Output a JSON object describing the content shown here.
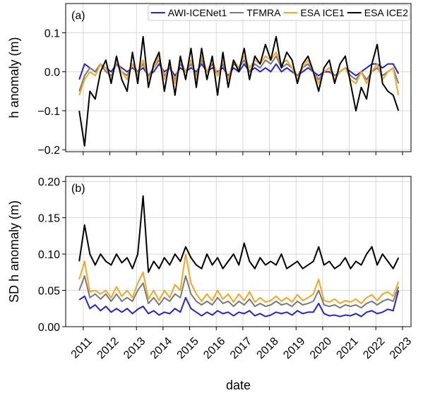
{
  "chart_data": [
    {
      "type": "line",
      "annotation": "(a)",
      "y_label": "h anomaly (m)",
      "legend": "upper right",
      "grid": true,
      "xlim": [
        2010.34,
        2023.32
      ],
      "xticks": [
        2011,
        2012,
        2013,
        2014,
        2015,
        2016,
        2017,
        2018,
        2019,
        2020,
        2021,
        2022,
        2023
      ],
      "ylim": [
        -0.205,
        0.175
      ],
      "yticks": [
        {
          "value": -0.2,
          "label": "−0.2"
        },
        {
          "value": -0.1,
          "label": "−0.1"
        },
        {
          "value": 0,
          "label": "0.0"
        },
        0.1
      ],
      "x": [
        2010.85,
        2011.05,
        2011.25,
        2011.45,
        2011.65,
        2011.85,
        2012.05,
        2012.25,
        2012.45,
        2012.65,
        2012.85,
        2013.05,
        2013.25,
        2013.45,
        2013.65,
        2013.85,
        2014.05,
        2014.25,
        2014.45,
        2014.65,
        2014.85,
        2015.05,
        2015.25,
        2015.45,
        2015.65,
        2015.85,
        2016.05,
        2016.25,
        2016.45,
        2016.65,
        2016.85,
        2017.05,
        2017.25,
        2017.45,
        2017.65,
        2017.85,
        2018.05,
        2018.25,
        2018.45,
        2018.65,
        2018.85,
        2019.05,
        2019.25,
        2019.45,
        2019.65,
        2019.85,
        2020.05,
        2020.25,
        2020.45,
        2020.65,
        2020.85,
        2021.05,
        2021.25,
        2021.45,
        2021.65,
        2021.85,
        2022.05,
        2022.25,
        2022.45,
        2022.65,
        2022.85
      ],
      "series": [
        {
          "name": "AWI-ICENet1",
          "color": "#2323d8",
          "values": [
            -0.02,
            0.02,
            0.01,
            0.0,
            0.02,
            0.01,
            0.0,
            0.02,
            0.01,
            0.0,
            0.01,
            0.0,
            0.01,
            -0.01,
            0.0,
            0.02,
            0.0,
            0.01,
            -0.01,
            0.01,
            0.0,
            0.01,
            0.0,
            0.02,
            0.0,
            0.01,
            0.0,
            0.01,
            -0.01,
            0.01,
            0.0,
            0.02,
            0.0,
            0.01,
            0.0,
            0.01,
            0.0,
            0.02,
            0.0,
            0.01,
            0.0,
            -0.01,
            0.0,
            0.01,
            0.0,
            -0.01,
            0.0,
            0.0,
            -0.01,
            0.0,
            0.01,
            0.0,
            -0.01,
            0.0,
            0.01,
            0.02,
            0.02,
            0.01,
            0.02,
            0.02,
            -0.005
          ]
        },
        {
          "name": "TFMRA",
          "color": "#7a7a7a",
          "values": [
            -0.05,
            -0.01,
            0.01,
            0.0,
            0.02,
            0.0,
            -0.01,
            0.02,
            0.0,
            -0.01,
            0.02,
            0.0,
            0.02,
            -0.01,
            0.01,
            0.03,
            -0.01,
            0.01,
            -0.02,
            0.02,
            0.0,
            0.02,
            -0.01,
            0.03,
            0.0,
            0.02,
            -0.01,
            0.02,
            -0.02,
            0.02,
            0.01,
            0.03,
            0.0,
            0.02,
            0.01,
            0.03,
            0.02,
            0.04,
            0.01,
            0.02,
            0.01,
            -0.01,
            0.01,
            0.02,
            0.0,
            -0.02,
            0.0,
            0.01,
            -0.01,
            0.0,
            0.01,
            -0.01,
            -0.02,
            0.0,
            -0.02,
            0.0,
            0.01,
            -0.01,
            0.0,
            0.01,
            -0.03
          ]
        },
        {
          "name": "ESA ICE1",
          "color": "#f5a623",
          "values": [
            -0.06,
            -0.02,
            0.0,
            -0.01,
            0.02,
            0.01,
            -0.02,
            0.03,
            0.0,
            -0.02,
            0.02,
            -0.01,
            0.03,
            -0.02,
            0.01,
            0.04,
            -0.02,
            0.02,
            -0.03,
            0.03,
            0.0,
            0.03,
            -0.02,
            0.04,
            0.0,
            0.03,
            -0.01,
            0.03,
            -0.02,
            0.03,
            0.01,
            0.04,
            0.01,
            0.03,
            0.02,
            0.04,
            0.03,
            0.05,
            0.02,
            0.03,
            0.01,
            -0.02,
            0.01,
            0.03,
            0.0,
            -0.03,
            0.0,
            0.01,
            -0.02,
            0.0,
            0.01,
            -0.02,
            -0.03,
            0.0,
            -0.03,
            0.0,
            0.02,
            -0.02,
            0.0,
            0.01,
            -0.06
          ]
        },
        {
          "name": "ESA ICE2",
          "color": "#000000",
          "values": [
            -0.1,
            -0.19,
            -0.05,
            -0.07,
            0.0,
            0.03,
            -0.03,
            0.04,
            -0.02,
            -0.05,
            0.05,
            -0.03,
            0.09,
            -0.04,
            0.02,
            0.05,
            -0.05,
            0.03,
            -0.06,
            0.04,
            -0.02,
            0.06,
            -0.04,
            0.06,
            -0.02,
            0.04,
            -0.06,
            0.05,
            -0.04,
            0.03,
            0.0,
            0.06,
            -0.02,
            0.04,
            0.02,
            0.07,
            0.03,
            0.09,
            0.01,
            0.05,
            0.03,
            -0.03,
            0.02,
            0.04,
            0.0,
            -0.05,
            0.01,
            0.03,
            -0.03,
            0.02,
            0.04,
            -0.03,
            -0.1,
            -0.04,
            -0.07,
            0.02,
            0.07,
            -0.03,
            -0.05,
            -0.06,
            -0.1
          ]
        }
      ]
    },
    {
      "type": "line",
      "annotation": "(b)",
      "y_label": "SD h anomaly (m)",
      "x_label": "date",
      "grid": true,
      "xlim": [
        2010.34,
        2023.32
      ],
      "xticks": [
        2011,
        2012,
        2013,
        2014,
        2015,
        2016,
        2017,
        2018,
        2019,
        2020,
        2021,
        2022,
        2023
      ],
      "ylim": [
        0,
        0.207
      ],
      "yticks": [
        {
          "value": 0,
          "label": "0.00"
        },
        0.05,
        {
          "value": 0.1,
          "label": "0.10"
        },
        0.15,
        {
          "value": 0.2,
          "label": "0.20"
        }
      ],
      "x": [
        2010.85,
        2011.05,
        2011.25,
        2011.45,
        2011.65,
        2011.85,
        2012.05,
        2012.25,
        2012.45,
        2012.65,
        2012.85,
        2013.05,
        2013.25,
        2013.45,
        2013.65,
        2013.85,
        2014.05,
        2014.25,
        2014.45,
        2014.65,
        2014.85,
        2015.05,
        2015.25,
        2015.45,
        2015.65,
        2015.85,
        2016.05,
        2016.25,
        2016.45,
        2016.65,
        2016.85,
        2017.05,
        2017.25,
        2017.45,
        2017.65,
        2017.85,
        2018.05,
        2018.25,
        2018.45,
        2018.65,
        2018.85,
        2019.05,
        2019.25,
        2019.45,
        2019.65,
        2019.85,
        2020.05,
        2020.25,
        2020.45,
        2020.65,
        2020.85,
        2021.05,
        2021.25,
        2021.45,
        2021.65,
        2021.85,
        2022.05,
        2022.25,
        2022.45,
        2022.65,
        2022.85
      ],
      "series": [
        {
          "color": "#2323d8",
          "values": [
            0.037,
            0.042,
            0.025,
            0.03,
            0.022,
            0.028,
            0.02,
            0.025,
            0.02,
            0.025,
            0.018,
            0.024,
            0.028,
            0.018,
            0.022,
            0.016,
            0.02,
            0.018,
            0.025,
            0.02,
            0.04,
            0.025,
            0.02,
            0.015,
            0.02,
            0.016,
            0.022,
            0.018,
            0.02,
            0.015,
            0.02,
            0.018,
            0.022,
            0.015,
            0.018,
            0.014,
            0.016,
            0.02,
            0.018,
            0.02,
            0.016,
            0.022,
            0.018,
            0.02,
            0.02,
            0.032,
            0.018,
            0.015,
            0.016,
            0.014,
            0.016,
            0.015,
            0.018,
            0.014,
            0.02,
            0.022,
            0.018,
            0.02,
            0.024,
            0.022,
            0.05
          ]
        },
        {
          "color": "#7a7a7a",
          "values": [
            0.05,
            0.07,
            0.04,
            0.045,
            0.038,
            0.045,
            0.035,
            0.045,
            0.035,
            0.04,
            0.035,
            0.05,
            0.06,
            0.032,
            0.04,
            0.03,
            0.04,
            0.035,
            0.045,
            0.04,
            0.07,
            0.045,
            0.035,
            0.03,
            0.035,
            0.03,
            0.04,
            0.032,
            0.035,
            0.028,
            0.035,
            0.03,
            0.038,
            0.028,
            0.032,
            0.028,
            0.03,
            0.035,
            0.03,
            0.032,
            0.028,
            0.035,
            0.03,
            0.032,
            0.035,
            0.05,
            0.03,
            0.028,
            0.03,
            0.026,
            0.03,
            0.028,
            0.03,
            0.026,
            0.032,
            0.035,
            0.03,
            0.035,
            0.038,
            0.035,
            0.055
          ]
        },
        {
          "color": "#f5a623",
          "values": [
            0.065,
            0.09,
            0.048,
            0.05,
            0.045,
            0.05,
            0.04,
            0.055,
            0.042,
            0.05,
            0.04,
            0.06,
            0.075,
            0.038,
            0.05,
            0.036,
            0.05,
            0.04,
            0.058,
            0.05,
            0.1,
            0.06,
            0.045,
            0.035,
            0.045,
            0.036,
            0.05,
            0.038,
            0.045,
            0.034,
            0.045,
            0.036,
            0.048,
            0.034,
            0.04,
            0.034,
            0.036,
            0.042,
            0.035,
            0.04,
            0.034,
            0.044,
            0.036,
            0.04,
            0.045,
            0.065,
            0.036,
            0.034,
            0.038,
            0.032,
            0.036,
            0.034,
            0.038,
            0.032,
            0.04,
            0.044,
            0.036,
            0.045,
            0.048,
            0.042,
            0.062
          ]
        },
        {
          "color": "#000000",
          "values": [
            0.09,
            0.14,
            0.1,
            0.085,
            0.1,
            0.09,
            0.085,
            0.1,
            0.088,
            0.095,
            0.08,
            0.1,
            0.18,
            0.075,
            0.09,
            0.08,
            0.095,
            0.085,
            0.1,
            0.09,
            0.11,
            0.095,
            0.085,
            0.08,
            0.1,
            0.085,
            0.095,
            0.08,
            0.09,
            0.1,
            0.085,
            0.115,
            0.09,
            0.08,
            0.095,
            0.085,
            0.09,
            0.085,
            0.1,
            0.08,
            0.085,
            0.09,
            0.08,
            0.085,
            0.09,
            0.11,
            0.085,
            0.09,
            0.08,
            0.085,
            0.095,
            0.08,
            0.09,
            0.085,
            0.1,
            0.11,
            0.085,
            0.1,
            0.09,
            0.08,
            0.095
          ]
        }
      ]
    }
  ]
}
